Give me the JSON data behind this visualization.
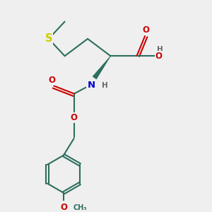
{
  "background_color": "#efefef",
  "bond_color": "#2d6e5e",
  "atom_colors": {
    "O": "#cc0000",
    "N": "#0000cc",
    "S": "#cccc00",
    "H": "#666666"
  },
  "figsize": [
    3.0,
    3.0
  ],
  "dpi": 100,
  "lw": 1.5,
  "fs": 8.5
}
